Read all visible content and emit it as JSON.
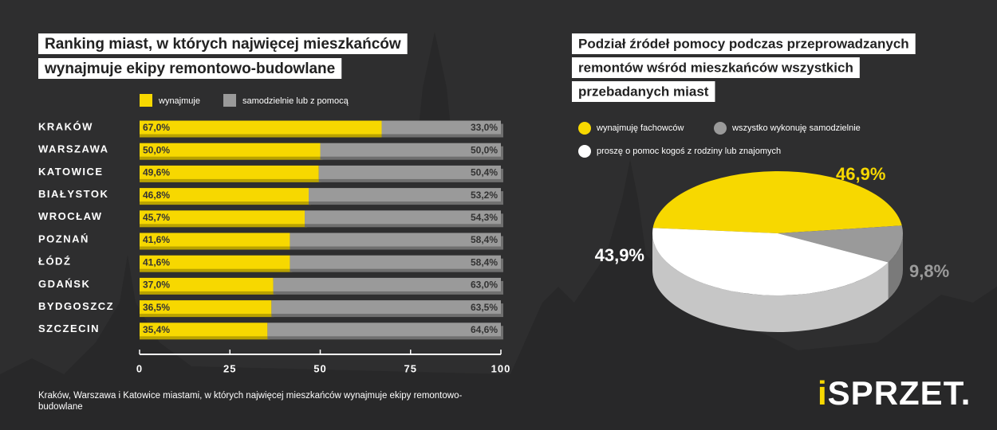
{
  "chart_data": [
    {
      "type": "stacked-bar",
      "title": [
        "Ranking miast, w których najwięcej mieszkańców",
        "wynajmuje ekipy remontowo-budowlane"
      ],
      "categories": [
        "KRAKÓW",
        "WARSZAWA",
        "KATOWICE",
        "BIAŁYSTOK",
        "WROCŁAW",
        "POZNAŃ",
        "ŁÓDŹ",
        "GDAŃSK",
        "BYDGOSZCZ",
        "SZCZECIN"
      ],
      "series": [
        {
          "name": "wynajmuje",
          "color": "#f7d800",
          "values": [
            67.0,
            50.0,
            49.6,
            46.8,
            45.7,
            41.6,
            41.6,
            37.0,
            36.5,
            35.4
          ],
          "value_labels": [
            "67,0%",
            "50,0%",
            "49,6%",
            "46,8%",
            "45,7%",
            "41,6%",
            "41,6%",
            "37,0%",
            "36,5%",
            "35,4%"
          ]
        },
        {
          "name": "samodzielnie lub z pomocą",
          "color": "#9a9a9a",
          "values": [
            33.0,
            50.0,
            50.4,
            53.2,
            54.3,
            58.4,
            58.4,
            63.0,
            63.5,
            64.6
          ],
          "value_labels": [
            "33,0%",
            "50,0%",
            "50,4%",
            "53,2%",
            "54,3%",
            "58,4%",
            "58,4%",
            "63,0%",
            "63,5%",
            "64,6%"
          ]
        }
      ],
      "xlim": [
        0,
        100
      ],
      "xticks": [
        0,
        25,
        50,
        75,
        100
      ]
    },
    {
      "type": "pie",
      "title": [
        "Podział źródeł pomocy podczas przeprowadzanych",
        "remontów wśród mieszkańców wszystkich",
        "przebadanych miast"
      ],
      "categories": [
        "wynajmuję fachowców",
        "wszystko wykonuję samodzielnie",
        "proszę o pomoc kogoś z rodziny lub znajomych"
      ],
      "values": [
        46.9,
        9.8,
        43.9
      ],
      "value_labels": [
        "46,9%",
        "9,8%",
        "43,9%"
      ],
      "colors": [
        "#f7d800",
        "#9a9a9a",
        "#ffffff"
      ]
    }
  ],
  "footnote": "Kraków, Warszawa i Katowice miastami, w których najwięcej mieszkańców wynajmuje ekipy remontowo-budowlane",
  "logo": "iSPRZET."
}
